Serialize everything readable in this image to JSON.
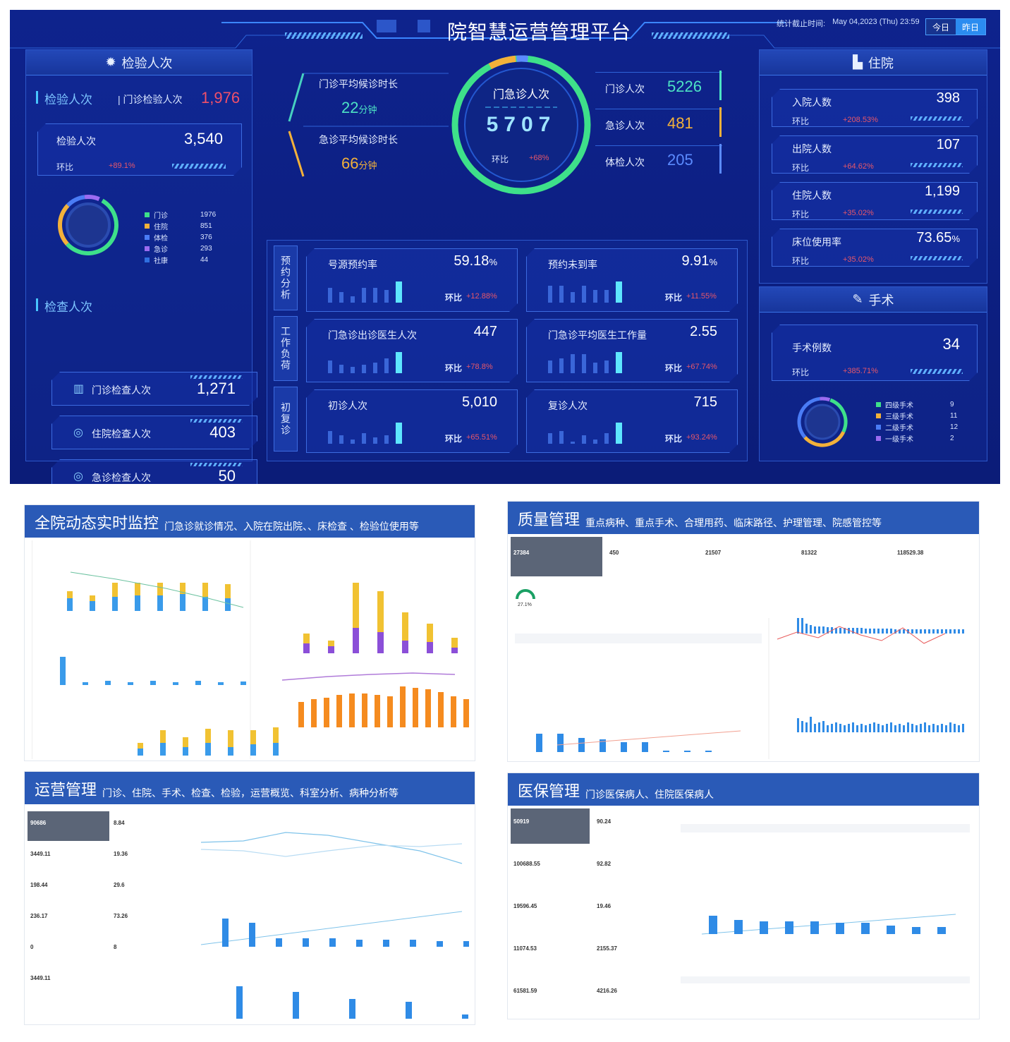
{
  "header": {
    "title": "院智慧运营管理平台",
    "stat_label": "统计截止时间:",
    "stat_time": "May 04,2023 (Thu) 23:59",
    "today": "今日",
    "yesterday": "昨日"
  },
  "left": {
    "title": "检验人次",
    "inspect_title": "检验人次",
    "outpatient_label": "门诊检验人次",
    "outpatient_value": "1,976",
    "card_label": "检验人次",
    "card_value": "3,540",
    "ratio_label": "环比",
    "ratio_value": "+89.1%",
    "legend": [
      {
        "name": "门诊",
        "value": "1976",
        "color": "#3ee08a"
      },
      {
        "name": "住院",
        "value": "851",
        "color": "#f3b13a"
      },
      {
        "name": "体检",
        "value": "376",
        "color": "#4a7cf5"
      },
      {
        "name": "急诊",
        "value": "293",
        "color": "#9b6bf0"
      },
      {
        "name": "社康",
        "value": "44",
        "color": "#2f6fe0"
      }
    ],
    "check_title": "检查人次",
    "checks": [
      {
        "label": "门诊检查人次",
        "value": "1,271",
        "icon": "bars-icon"
      },
      {
        "label": "住院检查人次",
        "value": "403",
        "icon": "target-icon"
      },
      {
        "label": "急诊检查人次",
        "value": "50",
        "icon": "target-icon"
      }
    ]
  },
  "center": {
    "wait_out_label": "门诊平均候诊时长",
    "wait_out_value": "22",
    "wait_out_unit": "分钟",
    "wait_em_label": "急诊平均候诊时长",
    "wait_em_value": "66",
    "wait_em_unit": "分钟",
    "ring_title": "门急诊人次",
    "ring_value": "5707",
    "ring_ratio_label": "环比",
    "ring_ratio_value": "+68%",
    "right_stats": [
      {
        "label": "门诊人次",
        "value": "5226",
        "color": "#4de3c4"
      },
      {
        "label": "急诊人次",
        "value": "481",
        "color": "#f3b13a"
      },
      {
        "label": "体检人次",
        "value": "205",
        "color": "#5b8bff"
      }
    ],
    "groups": [
      {
        "label": "预约分析"
      },
      {
        "label": "工作负荷"
      },
      {
        "label": "初复诊"
      }
    ],
    "cells": [
      {
        "label": "号源预约率",
        "value": "59.18",
        "unit": "%",
        "ratio_label": "环比",
        "ratio": "+12.88%"
      },
      {
        "label": "预约未到率",
        "value": "9.91",
        "unit": "%",
        "ratio_label": "环比",
        "ratio": "+11.55%"
      },
      {
        "label": "门急诊出诊医生人次",
        "value": "447",
        "unit": "",
        "ratio_label": "环比",
        "ratio": "+78.8%"
      },
      {
        "label": "门急诊平均医生工作量",
        "value": "2.55",
        "unit": "",
        "ratio_label": "环比",
        "ratio": "+67.74%"
      },
      {
        "label": "初诊人次",
        "value": "5,010",
        "unit": "",
        "ratio_label": "环比",
        "ratio": "+65.51%"
      },
      {
        "label": "复诊人次",
        "value": "715",
        "unit": "",
        "ratio_label": "环比",
        "ratio": "+93.24%"
      }
    ]
  },
  "right": {
    "title": "住院",
    "cards": [
      {
        "label": "入院人数",
        "value": "398",
        "unit": "",
        "ratio_label": "环比",
        "ratio": "+208.53%"
      },
      {
        "label": "出院人数",
        "value": "107",
        "unit": "",
        "ratio_label": "环比",
        "ratio": "+64.62%"
      },
      {
        "label": "住院人数",
        "value": "1,199",
        "unit": "",
        "ratio_label": "环比",
        "ratio": "+35.02%"
      },
      {
        "label": "床位使用率",
        "value": "73.65",
        "unit": "%",
        "ratio_label": "环比",
        "ratio": "+35.02%"
      }
    ],
    "surgery_title": "手术",
    "surgery_label": "手术例数",
    "surgery_value": "34",
    "surgery_ratio_label": "环比",
    "surgery_ratio": "+385.71%",
    "surgery_legend": [
      {
        "name": "四级手术",
        "value": "9",
        "color": "#3ee08a"
      },
      {
        "name": "三级手术",
        "value": "11",
        "color": "#f3b13a"
      },
      {
        "name": "二级手术",
        "value": "12",
        "color": "#4a7cf5"
      },
      {
        "name": "一级手术",
        "value": "2",
        "color": "#9b6bf0"
      }
    ]
  },
  "shots": {
    "monitor": {
      "title": "全院动态实时监控",
      "subtitle": "门急诊就诊情况、入院在院出院、、床检查 、检验位使用等"
    },
    "quality": {
      "title": "质量管理",
      "subtitle": "重点病种、重点手术、合理用药、临床路径、护理管理、院感管控等",
      "stats": [
        {
          "value": "27384"
        },
        {
          "value": "450"
        },
        {
          "value": "21507"
        },
        {
          "value": "81322"
        },
        {
          "value": "118529.38"
        }
      ],
      "gauge": "27.1%"
    },
    "ops": {
      "title": "运营管理",
      "subtitle": "门诊、住院、手术、检查、检验，运营概览、科室分析、病种分析等",
      "stats": [
        "90686",
        "8.84",
        "3449.11",
        "19.36",
        "198.44",
        "29.6",
        "236.17",
        "73.26",
        "0",
        "8",
        "3449.11"
      ]
    },
    "insurance": {
      "title": "医保管理",
      "subtitle": "门诊医保病人、住院医保病人",
      "stats": [
        "50919",
        "90.24",
        "100688.55",
        "92.82",
        "19596.45",
        "19.46",
        "11074.53",
        "2155.37",
        "61581.59",
        "4216.26"
      ]
    }
  }
}
